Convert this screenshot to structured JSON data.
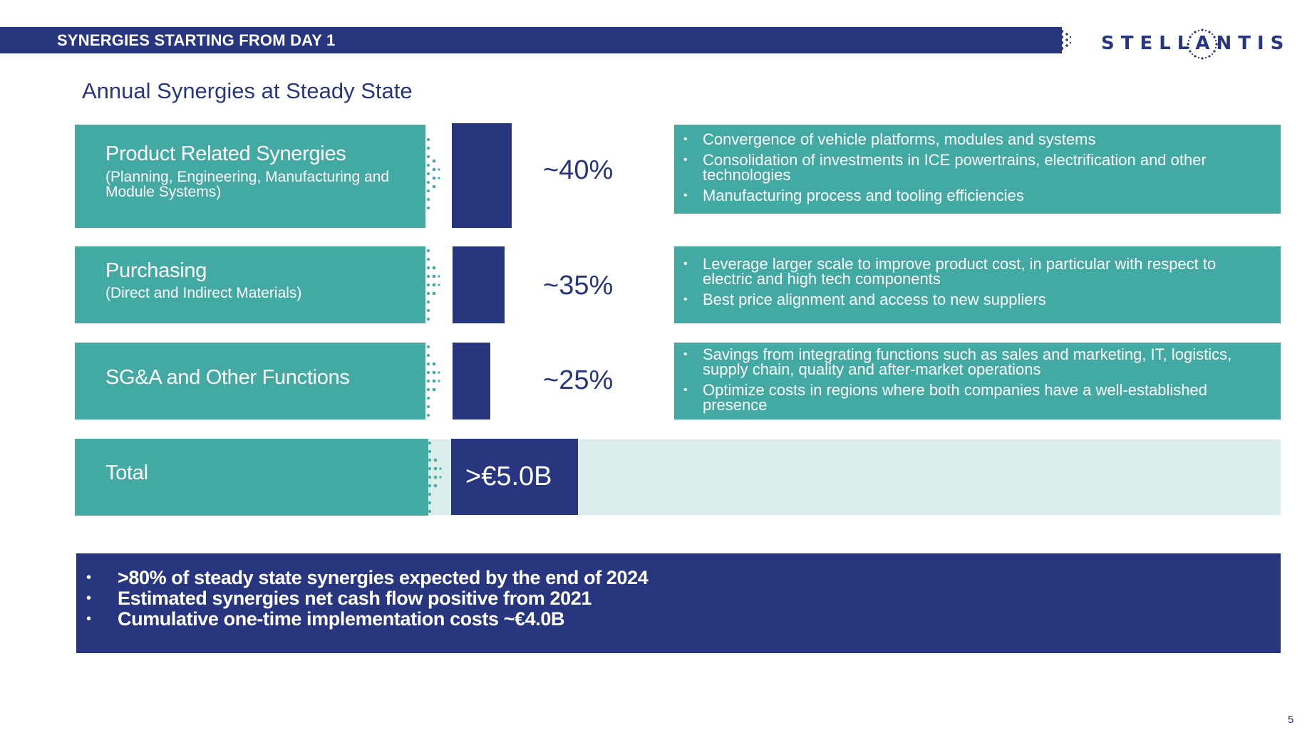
{
  "header": {
    "title": "SYNERGIES STARTING FROM DAY 1",
    "logo_text": "STELLANTIS"
  },
  "subtitle": "Annual Synergies at Steady State",
  "rows": [
    {
      "title": "Product Related Synergies",
      "sub": "(Planning, Engineering, Manufacturing and Module Systems)",
      "share": 0.4,
      "pct": "~40%",
      "bullets": [
        "Convergence of vehicle platforms, modules and systems",
        "Consolidation of investments in ICE powertrains, electrification and other technologies",
        "Manufacturing process and tooling efficiencies"
      ]
    },
    {
      "title": "Purchasing",
      "sub": "(Direct and Indirect Materials)",
      "share": 0.35,
      "pct": "~35%",
      "bullets": [
        "Leverage larger scale to improve product cost, in particular with respect to electric and high tech components",
        "Best price alignment and access to new suppliers"
      ]
    },
    {
      "title": "SG&A and Other Functions",
      "sub": "",
      "share": 0.25,
      "pct": "~25%",
      "bullets": [
        "Savings from integrating functions such as sales and marketing, IT, logistics, supply chain, quality and after-market operations",
        "Optimize costs in regions where both companies have a well-established presence"
      ]
    }
  ],
  "total": {
    "label": "Total",
    "value": ">€5.0B"
  },
  "summary": [
    ">80% of steady state synergies expected by the end of 2024",
    "Estimated synergies net cash flow positive from 2021",
    "Cumulative one-time implementation costs ~€4.0B"
  ],
  "page_number": "5",
  "colors": {
    "navy": "#27367f",
    "teal": "#42a9a3",
    "light_teal": "#dbeeed"
  }
}
